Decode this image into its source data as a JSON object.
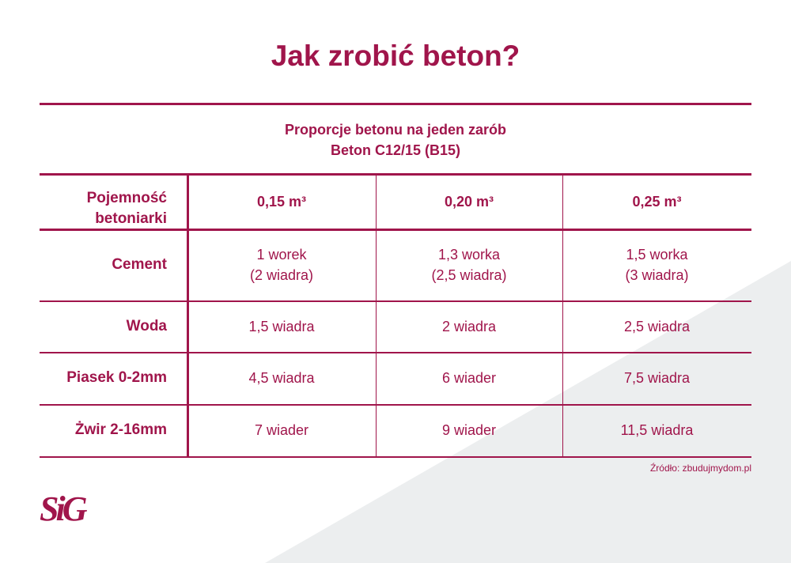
{
  "title": "Jak zrobić beton?",
  "subtitle": {
    "line1": "Proporcje betonu na jeden zarób",
    "line2": "Beton C12/15 (B15)"
  },
  "table": {
    "header": {
      "label_line1": "Pojemność",
      "label_line2": "betoniarki",
      "columns": [
        "0,15 m³",
        "0,20 m³",
        "0,25 m³"
      ]
    },
    "rows": [
      {
        "label": "Cement",
        "values": [
          [
            "1 worek",
            "(2 wiadra)"
          ],
          [
            "1,3 worka",
            "(2,5 wiadra)"
          ],
          [
            "1,5 worka",
            "(3 wiadra)"
          ]
        ]
      },
      {
        "label": "Woda",
        "values": [
          [
            "1,5 wiadra"
          ],
          [
            "2 wiadra"
          ],
          [
            "2,5 wiadra"
          ]
        ]
      },
      {
        "label": "Piasek 0-2mm",
        "values": [
          [
            "4,5 wiadra"
          ],
          [
            "6 wiader"
          ],
          [
            "7,5 wiadra"
          ]
        ]
      },
      {
        "label": "Żwir 2-16mm",
        "values": [
          [
            "7 wiader"
          ],
          [
            "9 wiader"
          ],
          [
            "11,5 wiadra"
          ]
        ]
      }
    ]
  },
  "source": "Źródło: zbudujmydom.pl",
  "logo_text": "SIG",
  "colors": {
    "accent": "#a0154b",
    "background_shape": "#eceeef"
  }
}
